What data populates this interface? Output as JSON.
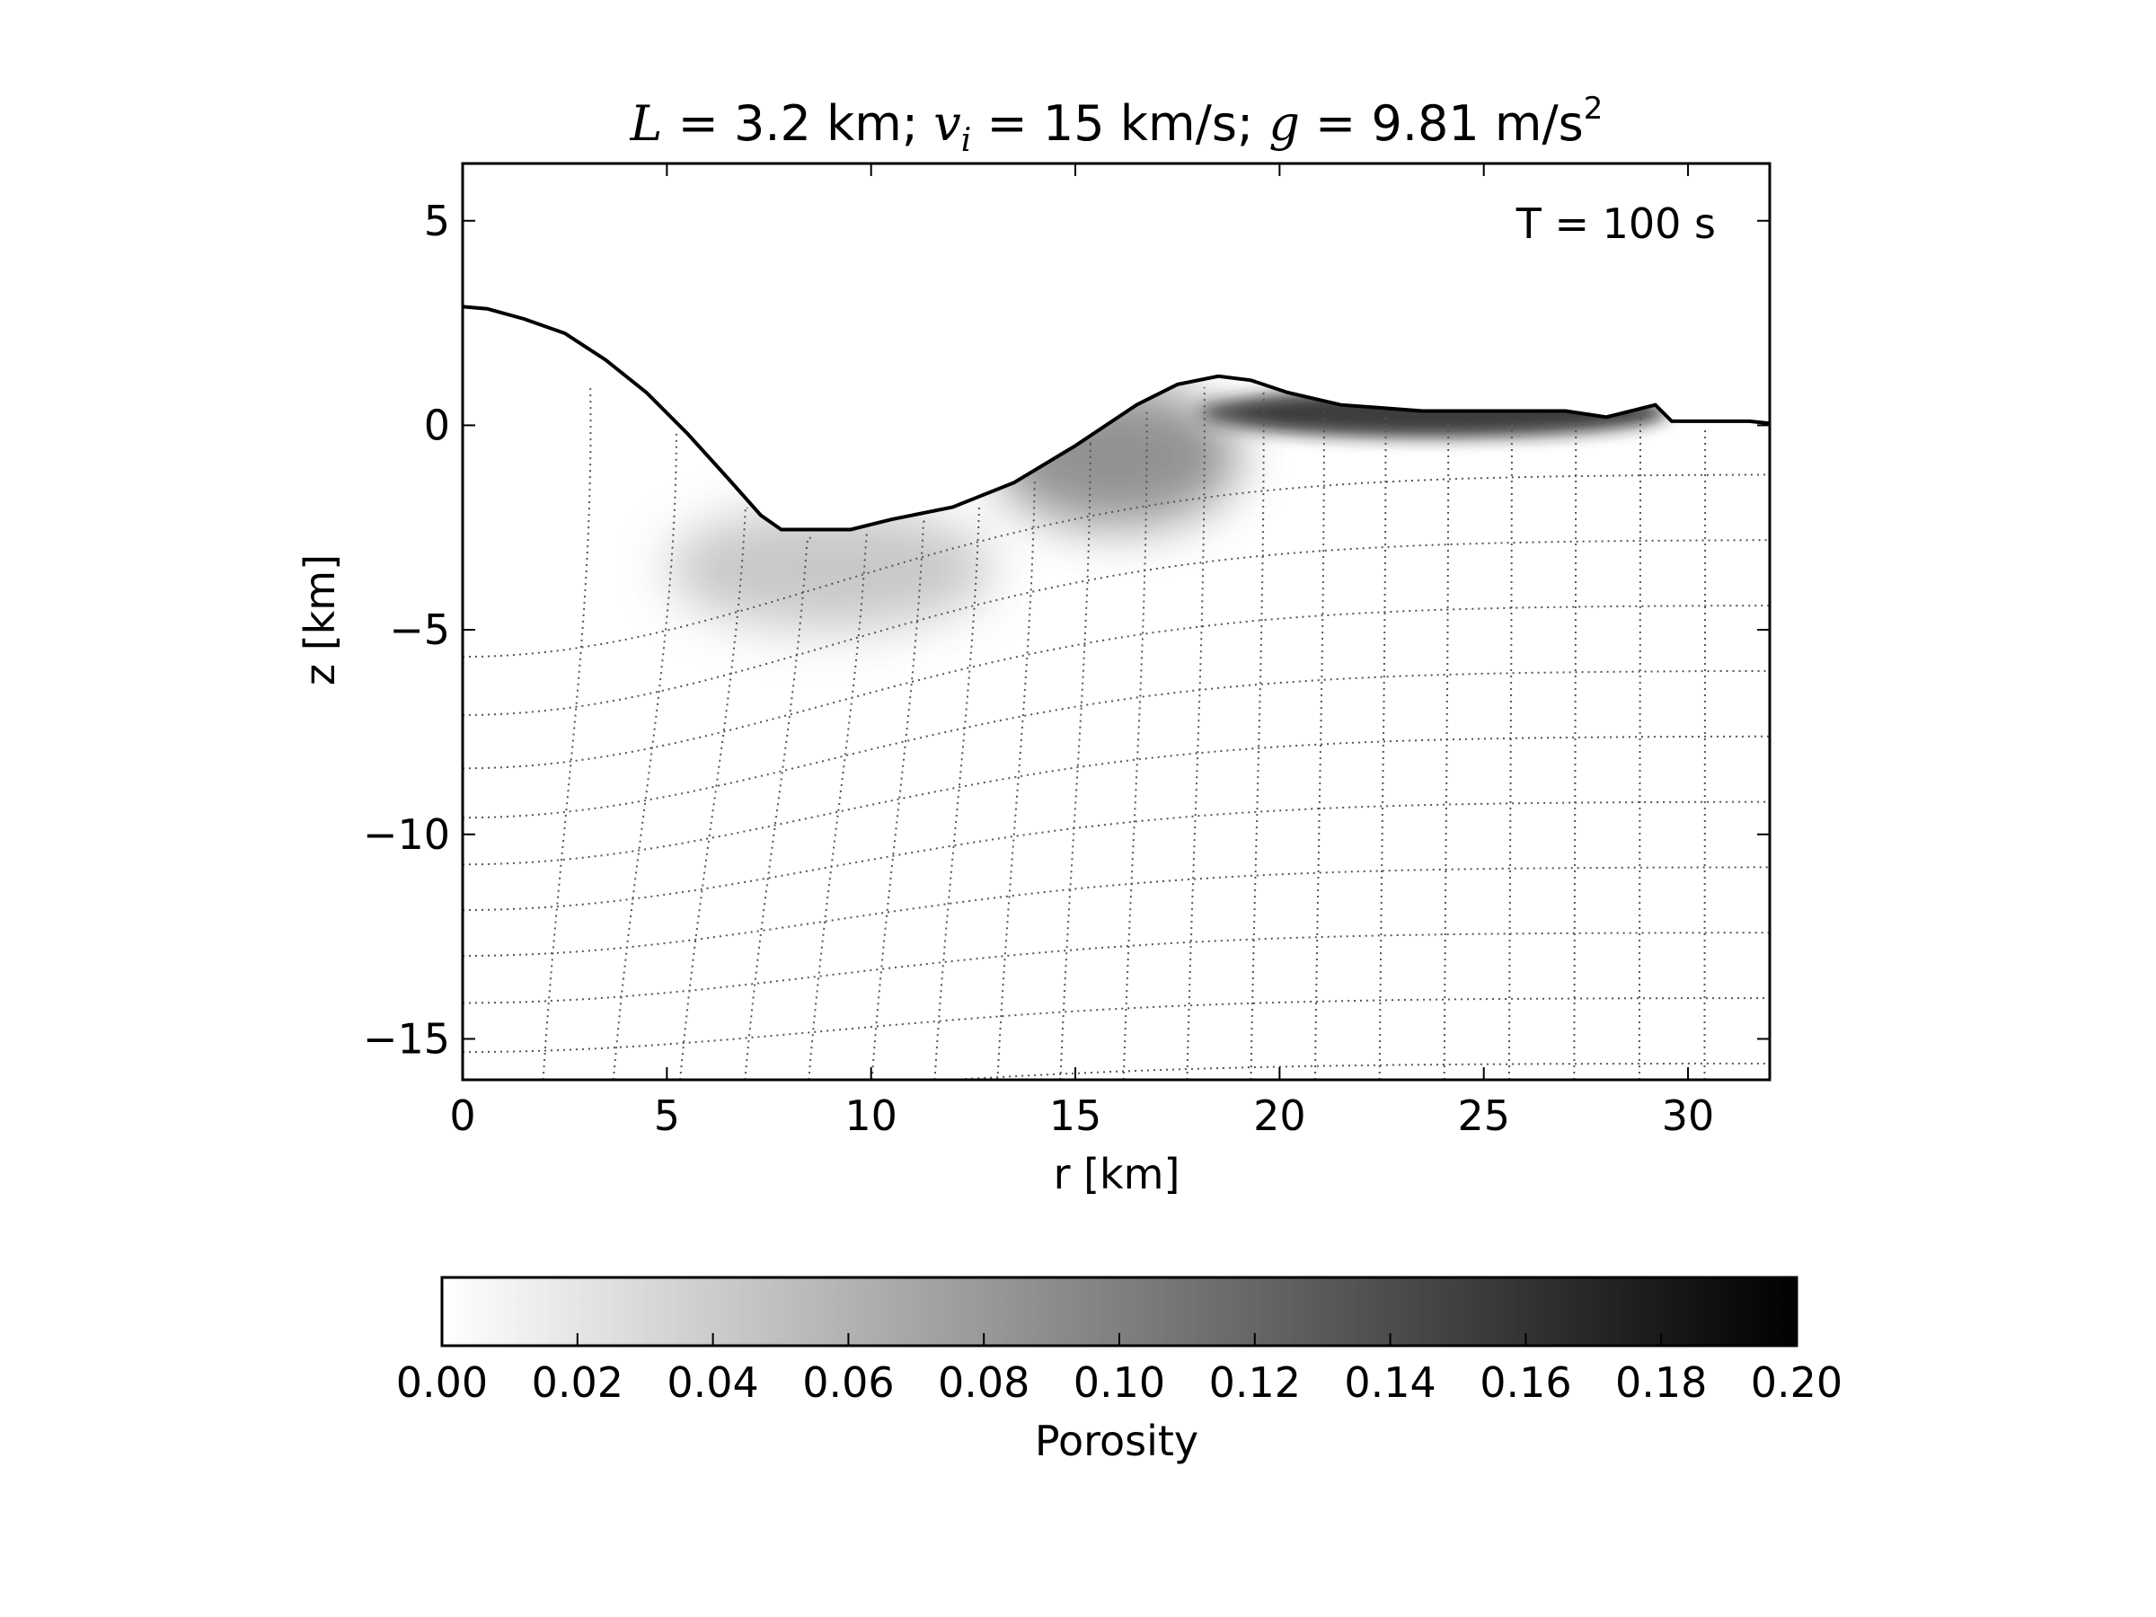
{
  "title": {
    "L_symbol": "L",
    "L_text": " = 3.2 km; ",
    "v_symbol": "v",
    "v_subscript": "i",
    "v_text": " = 15 km/s; ",
    "g_symbol": "g",
    "g_text": " = 9.81 m/s",
    "g_superscript": "2"
  },
  "annotation": "T =  100 s",
  "chart_data": [
    {
      "type": "heatmap",
      "description_source": "crater simulation porosity field with Lagrangian tracer grid",
      "xlabel": "r [km]",
      "ylabel": "z [km]",
      "xlim": [
        0,
        32
      ],
      "ylim": [
        -16,
        6.4
      ],
      "xticks": [
        0,
        5,
        10,
        15,
        20,
        25,
        30
      ],
      "xtick_labels": [
        "0",
        "5",
        "10",
        "15",
        "20",
        "25",
        "30"
      ],
      "yticks": [
        5,
        0,
        -5,
        -10,
        -15
      ],
      "ytick_labels": [
        "5",
        "0",
        "−5",
        "−10",
        "−15"
      ],
      "grid": false,
      "surface_profile": {
        "r": [
          0,
          0.6,
          1.5,
          2.5,
          3.5,
          4.5,
          5.5,
          6.5,
          7.3,
          7.8,
          8.0,
          9.5,
          10.5,
          12,
          13.5,
          15,
          16.5,
          17.5,
          18.5,
          19.3,
          20.2,
          21.5,
          23.5,
          25,
          27,
          28,
          29.2,
          29.6,
          30.5,
          31.5,
          32
        ],
        "z": [
          2.9,
          2.85,
          2.6,
          2.25,
          1.6,
          0.8,
          -0.2,
          -1.3,
          -2.2,
          -2.55,
          -2.55,
          -2.55,
          -2.3,
          -2.0,
          -1.4,
          -0.5,
          0.5,
          1.0,
          1.2,
          1.1,
          0.8,
          0.5,
          0.35,
          0.35,
          0.35,
          0.2,
          0.5,
          0.1,
          0.1,
          0.1,
          0.05
        ]
      },
      "high_porosity_zones": [
        {
          "r_range": [
            18,
            29.5
          ],
          "z_range": [
            -0.3,
            0.9
          ],
          "max_porosity": 0.18
        },
        {
          "r_range": [
            13,
            19
          ],
          "z_range": [
            -2.5,
            1.0
          ],
          "max_porosity": 0.1
        },
        {
          "r_range": [
            5,
            13
          ],
          "z_range": [
            -5,
            -2
          ],
          "max_porosity": 0.05
        }
      ]
    },
    {
      "type": "heatmap",
      "role": "colorbar",
      "label": "Porosity",
      "range": [
        0.0,
        0.2
      ],
      "colormap": "white-to-black",
      "tick_labels": [
        "0.00",
        "0.02",
        "0.04",
        "0.06",
        "0.08",
        "0.10",
        "0.12",
        "0.14",
        "0.16",
        "0.18",
        "0.20"
      ]
    }
  ]
}
